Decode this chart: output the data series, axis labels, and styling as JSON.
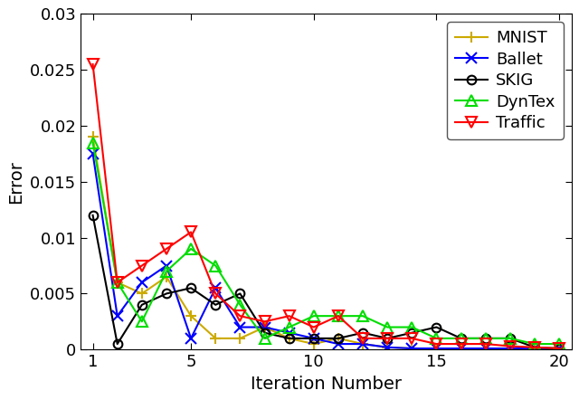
{
  "x": [
    1,
    2,
    3,
    4,
    5,
    6,
    7,
    8,
    9,
    10,
    11,
    12,
    13,
    14,
    15,
    16,
    17,
    18,
    19,
    20
  ],
  "series": {
    "MNIST": {
      "color": "#ccaa00",
      "marker": "+",
      "markersize": 9,
      "linewidth": 1.5,
      "values": [
        0.019,
        0.006,
        0.005,
        0.0065,
        0.003,
        0.001,
        0.001,
        0.002,
        0.001,
        0.0005,
        0.001,
        0.0005,
        0.0002,
        0.0001,
        0.0001,
        0.0001,
        0.0001,
        0.0001,
        0.0001,
        0.0001
      ]
    },
    "Ballet": {
      "color": "#0000ff",
      "marker": "x",
      "markersize": 9,
      "linewidth": 1.5,
      "values": [
        0.0175,
        0.003,
        0.006,
        0.0075,
        0.001,
        0.0055,
        0.002,
        0.002,
        0.0015,
        0.001,
        0.0005,
        0.0005,
        0.0002,
        0.0001,
        0.0001,
        0.0001,
        0.0001,
        0.0001,
        0.0001,
        0.0001
      ]
    },
    "SKIG": {
      "color": "#000000",
      "marker": "o",
      "markersize": 7,
      "linewidth": 1.5,
      "values": [
        0.012,
        0.0005,
        0.004,
        0.005,
        0.0055,
        0.004,
        0.005,
        0.0015,
        0.001,
        0.001,
        0.001,
        0.0015,
        0.001,
        0.0015,
        0.002,
        0.001,
        0.001,
        0.001,
        0.0002,
        0.0001
      ]
    },
    "DynTex": {
      "color": "#00dd00",
      "marker": "^",
      "markersize": 8,
      "linewidth": 1.5,
      "values": [
        0.0185,
        0.006,
        0.0025,
        0.007,
        0.009,
        0.0075,
        0.004,
        0.001,
        0.002,
        0.003,
        0.003,
        0.003,
        0.002,
        0.002,
        0.001,
        0.001,
        0.001,
        0.001,
        0.0005,
        0.0005
      ]
    },
    "Traffic": {
      "color": "#ff0000",
      "marker": "v",
      "markersize": 8,
      "linewidth": 1.5,
      "values": [
        0.0255,
        0.006,
        0.0075,
        0.009,
        0.0105,
        0.005,
        0.003,
        0.0025,
        0.003,
        0.002,
        0.003,
        0.001,
        0.001,
        0.001,
        0.0005,
        0.0005,
        0.0005,
        0.0003,
        0.0002,
        0.0001
      ]
    }
  },
  "xlabel": "Iteration Number",
  "ylabel": "Error",
  "xlim": [
    0.5,
    20.5
  ],
  "ylim": [
    0,
    0.03
  ],
  "yticks": [
    0,
    0.005,
    0.01,
    0.015,
    0.02,
    0.025,
    0.03
  ],
  "xticks": [
    1,
    5,
    10,
    15,
    20
  ],
  "legend_order": [
    "MNIST",
    "Ballet",
    "SKIG",
    "DynTex",
    "Traffic"
  ],
  "legend_loc": "upper right",
  "font_family": "DejaVu Sans",
  "title": ""
}
